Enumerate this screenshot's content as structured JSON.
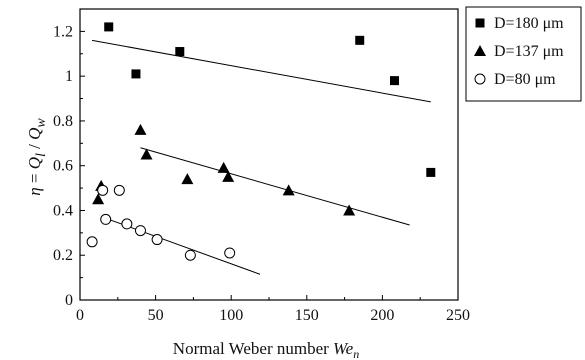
{
  "chart_data": {
    "type": "scatter",
    "title": "",
    "xlabel_prefix": "Normal Weber number ",
    "xlabel_symbol": "We",
    "xlabel_subscript": "n",
    "ylabel": "η = Q_l / Q_w",
    "ylabel_parts": {
      "eta": "η",
      "eq": " = ",
      "q1": "Q",
      "sub1": "l",
      "slash": " / ",
      "q2": "Q",
      "sub2": "w"
    },
    "xlim": [
      0,
      250
    ],
    "ylim": [
      0,
      1.3
    ],
    "x_ticks": [
      0,
      50,
      100,
      150,
      200,
      250
    ],
    "x_tick_labels": [
      "0",
      "50",
      "100",
      "150",
      "200",
      "250"
    ],
    "y_ticks": [
      0,
      0.2,
      0.4,
      0.6,
      0.8,
      1.0,
      1.2
    ],
    "y_tick_labels": [
      "0",
      "0.2",
      "0.4",
      "0.6",
      "0.8",
      "1",
      "1.2"
    ],
    "grid": false,
    "legend_position": "outside-top-right",
    "series": [
      {
        "name": "D=180 μm",
        "marker": "square",
        "points": [
          [
            19,
            1.22
          ],
          [
            37,
            1.01
          ],
          [
            66,
            1.11
          ],
          [
            185,
            1.16
          ],
          [
            208,
            0.98
          ],
          [
            232,
            0.57
          ]
        ],
        "fit_line": [
          [
            8,
            1.16
          ],
          [
            232,
            0.885
          ]
        ]
      },
      {
        "name": "D=137 μm",
        "marker": "triangle",
        "points": [
          [
            12,
            0.45
          ],
          [
            14,
            0.51
          ],
          [
            40,
            0.76
          ],
          [
            44,
            0.65
          ],
          [
            71,
            0.54
          ],
          [
            95,
            0.59
          ],
          [
            98,
            0.55
          ],
          [
            138,
            0.49
          ],
          [
            178,
            0.4
          ]
        ],
        "fit_line": [
          [
            40,
            0.68
          ],
          [
            218,
            0.335
          ]
        ]
      },
      {
        "name": "D=80 μm",
        "marker": "circle-open",
        "points": [
          [
            8,
            0.26
          ],
          [
            15,
            0.49
          ],
          [
            17,
            0.36
          ],
          [
            26,
            0.49
          ],
          [
            31,
            0.34
          ],
          [
            40,
            0.31
          ],
          [
            51,
            0.27
          ],
          [
            73,
            0.2
          ],
          [
            99,
            0.21
          ]
        ],
        "fit_line": [
          [
            15,
            0.37
          ],
          [
            119,
            0.115
          ]
        ]
      }
    ]
  }
}
